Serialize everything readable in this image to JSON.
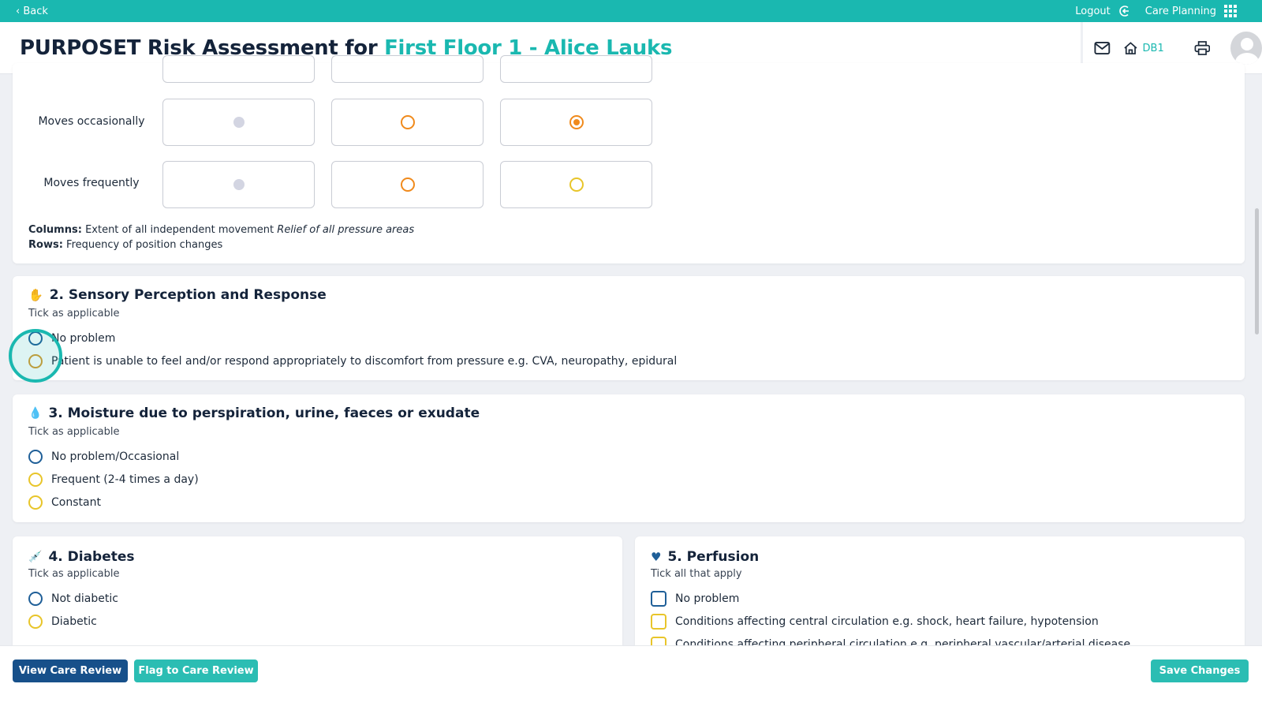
{
  "topbar": {
    "back": "‹ Back",
    "logout": "Logout",
    "app": "Care Planning"
  },
  "header": {
    "title_prefix": "PURPOSET Risk Assessment for ",
    "title_accent": "First Floor 1 - Alice Lauks",
    "location": "DB1"
  },
  "section1": {
    "rows": [
      {
        "label": "Moves occasionally",
        "cells": [
          "disabled",
          "orange",
          "orange-selected"
        ]
      },
      {
        "label": "Moves frequently",
        "cells": [
          "disabled",
          "orange",
          "yellow"
        ]
      }
    ],
    "columns_label": "Columns:",
    "columns_text": "Extent of all independent movement",
    "columns_italic": "Relief of all pressure areas",
    "rows_label": "Rows:",
    "rows_text": "Frequency of position changes"
  },
  "section2": {
    "title": "2. Sensory Perception and Response",
    "subtitle": "Tick as applicable",
    "options": [
      "No problem",
      "Patient is unable to feel and/or respond appropriately to discomfort from pressure e.g. CVA, neuropathy, epidural"
    ]
  },
  "section3": {
    "title": "3. Moisture due to perspiration, urine, faeces or exudate",
    "subtitle": "Tick as applicable",
    "options": [
      "No problem/Occasional",
      "Frequent (2-4 times a day)",
      "Constant"
    ]
  },
  "section4": {
    "title": "4. Diabetes",
    "subtitle": "Tick as applicable",
    "options": [
      "Not diabetic",
      "Diabetic"
    ]
  },
  "section5": {
    "title": "5. Perfusion",
    "subtitle": "Tick all that apply",
    "options": [
      "No problem",
      "Conditions affecting central circulation e.g. shock, heart failure, hypotension",
      "Conditions affecting peripheral circulation e.g. peripheral vascular/arterial disease"
    ]
  },
  "footer": {
    "view": "View Care Review",
    "flag": "Flag to Care Review",
    "save": "Save Changes"
  },
  "colors": {
    "teal": "#1ab8b0",
    "navy": "#1f5f98",
    "orange": "#f08a1c",
    "yellow": "#e8c52a"
  }
}
